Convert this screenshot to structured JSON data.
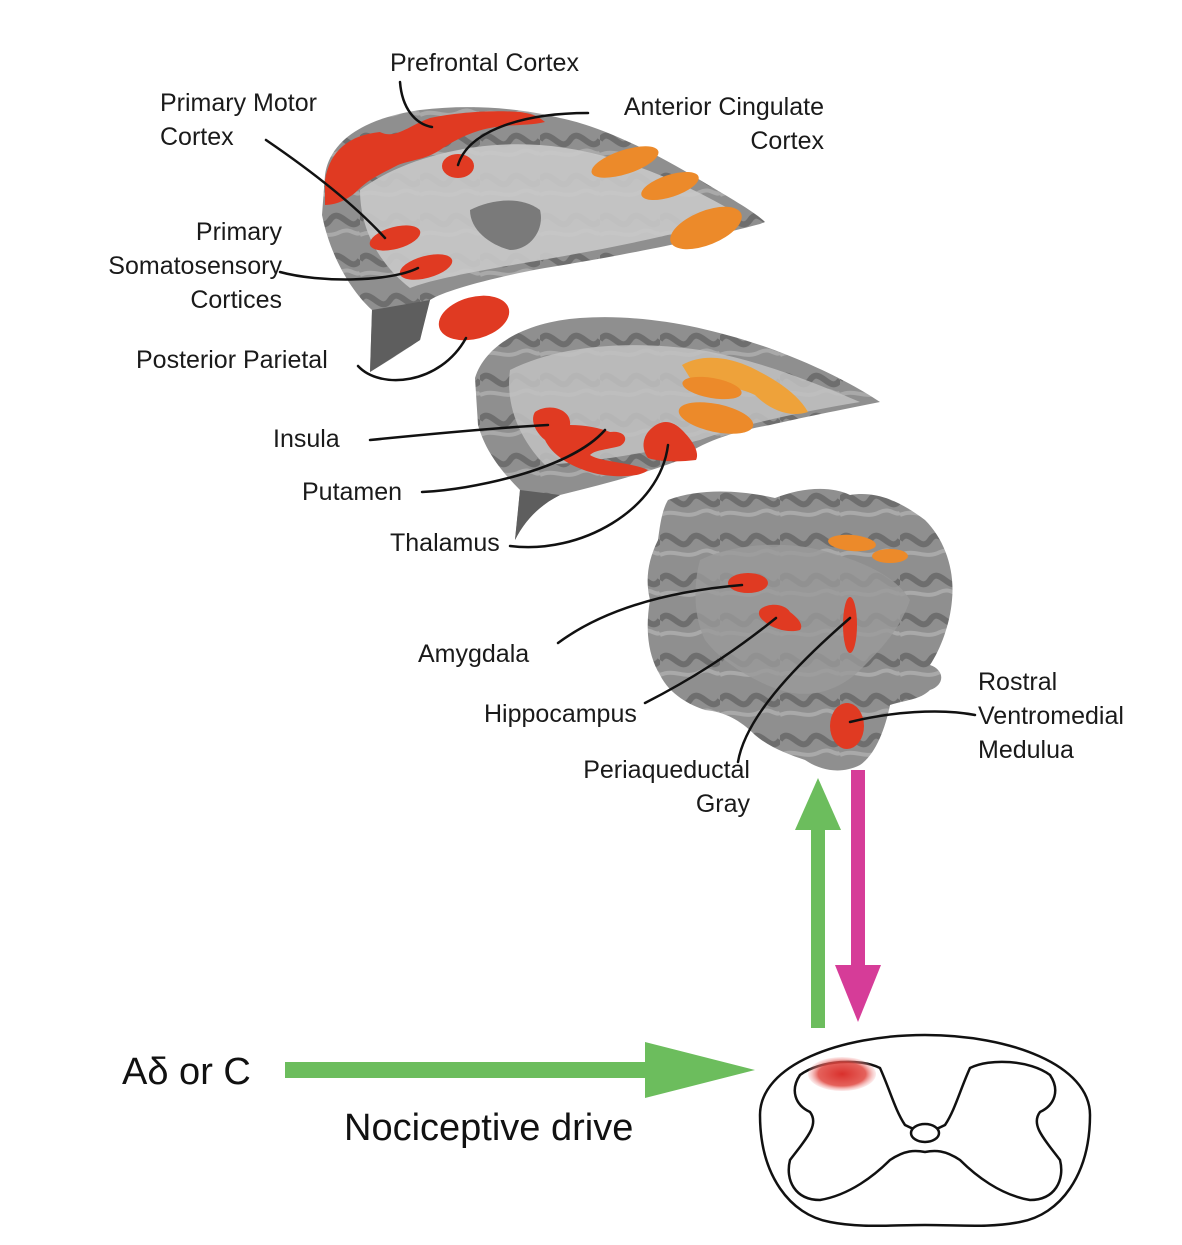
{
  "labels": {
    "prefrontal_cortex": "Prefrontal Cortex",
    "primary_motor_cortex": "Primary Motor\nCortex",
    "anterior_cingulate_cortex": "Anterior Cingulate\nCortex",
    "primary_somatosensory_cortices": "Primary\nSomatosensory\nCortices",
    "posterior_parietal": "Posterior Parietal",
    "insula": "Insula",
    "putamen": "Putamen",
    "thalamus": "Thalamus",
    "amygdala": "Amygdala",
    "hippocampus": "Hippocampus",
    "periaqueductal_gray": "Periaqueductal\nGray",
    "rostral_ventromedial_medulua": "Rostral\nVentromedial\nMedulua"
  },
  "input": {
    "fiber_type": "Aδ or C",
    "drive": "Nociceptive drive"
  },
  "colors": {
    "activation_red": "#e03a22",
    "activation_orange": "#ec8a2a",
    "ascending_arrow": "#6cbd5d",
    "descending_arrow": "#d63c98",
    "input_arrow": "#6cbd5d",
    "dorsal_horn_spot": "#d9302c"
  }
}
